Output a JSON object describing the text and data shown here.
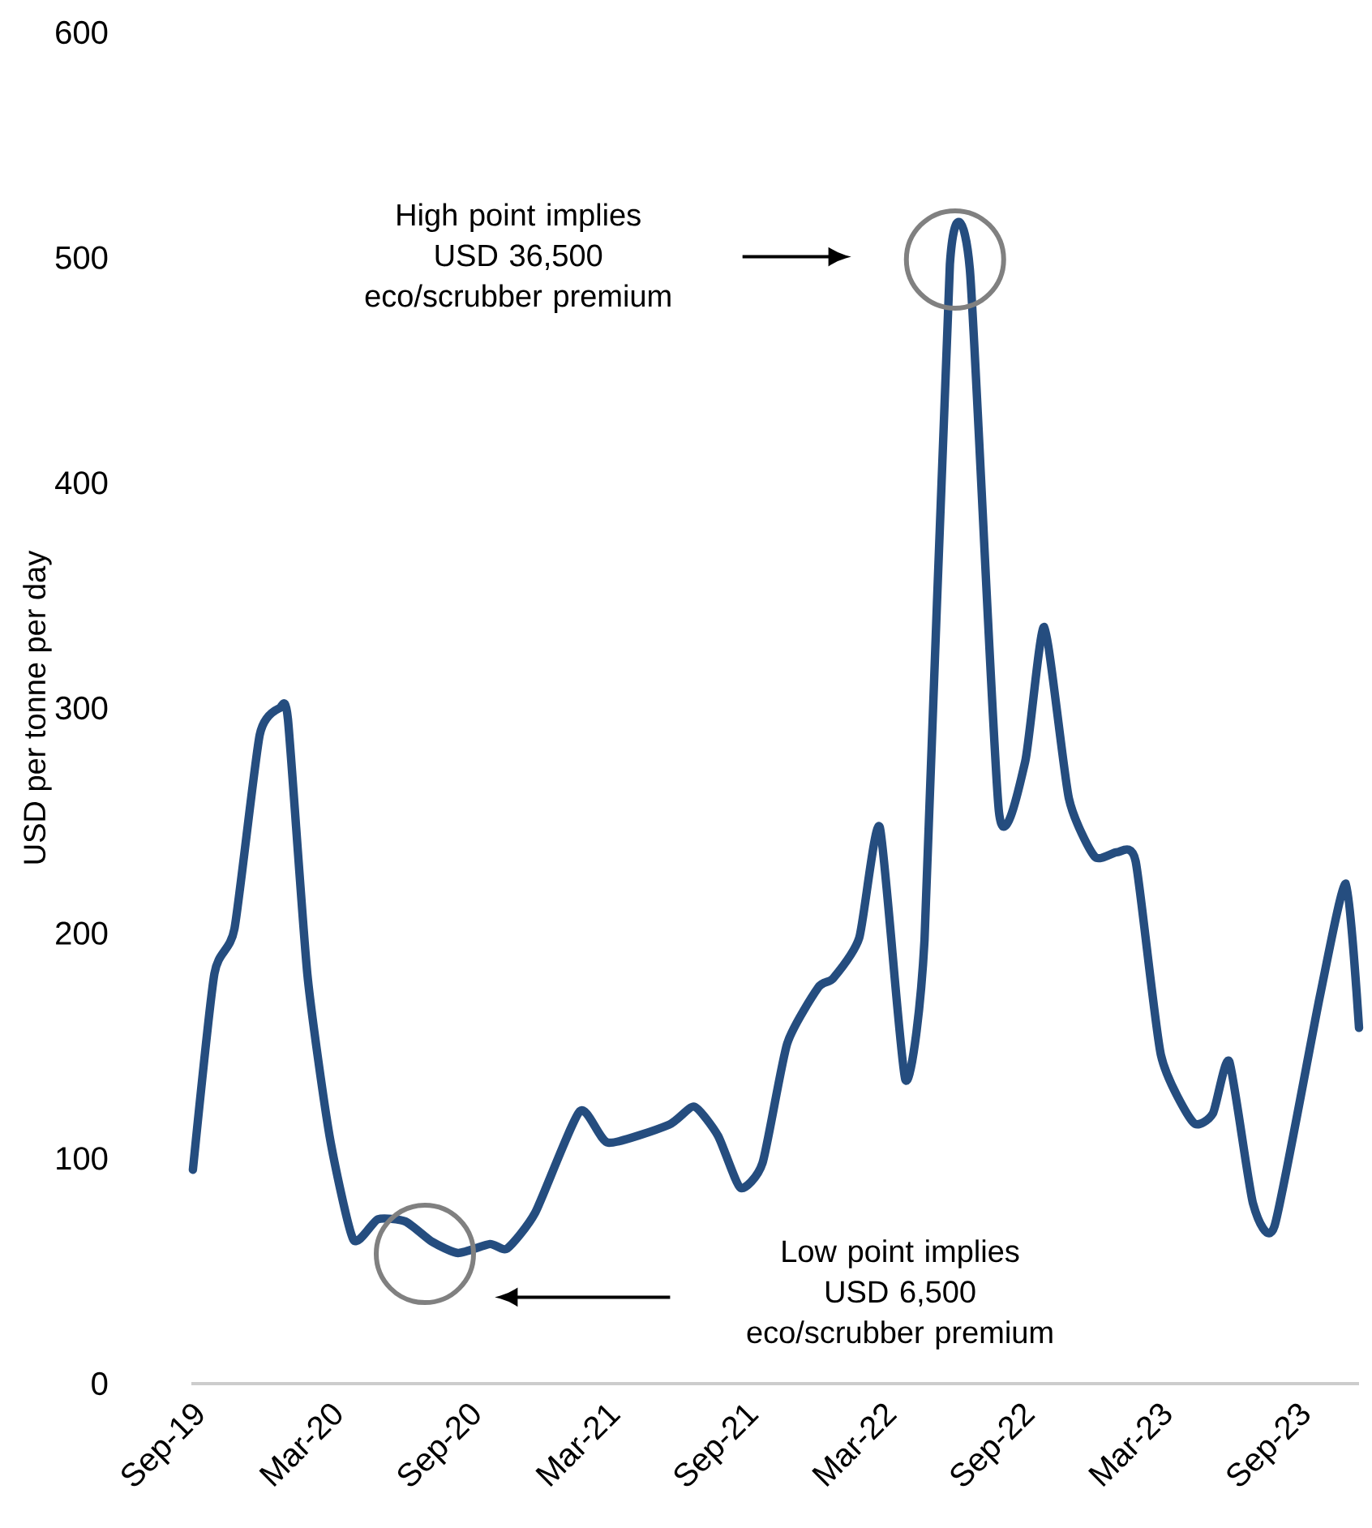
{
  "chart_data": {
    "type": "line",
    "ylabel": "USD per tonne per day",
    "x": [
      "2019-09-03",
      "2019-10-01",
      "2019-10-28",
      "2019-11-30",
      "2019-12-27",
      "2020-01-07",
      "2020-02-02",
      "2020-03-01",
      "2020-04-02",
      "2020-05-04",
      "2020-06-10",
      "2020-07-15",
      "2020-08-19",
      "2020-09-30",
      "2020-10-23",
      "2020-11-29",
      "2021-01-28",
      "2021-03-04",
      "2021-05-24",
      "2021-06-26",
      "2021-07-28",
      "2021-08-27",
      "2021-09-25",
      "2021-10-28",
      "2021-12-08",
      "2021-12-28",
      "2022-02-01",
      "2022-02-26",
      "2022-04-01",
      "2022-04-26",
      "2022-05-30",
      "2022-06-25",
      "2022-08-03",
      "2022-09-07",
      "2022-10-02",
      "2022-11-04",
      "2022-12-08",
      "2023-01-07",
      "2023-02-01",
      "2023-03-04",
      "2023-04-16",
      "2023-05-12",
      "2023-06-03",
      "2023-07-04",
      "2023-08-02",
      "2023-10-01",
      "2023-11-05",
      "2023-11-22"
    ],
    "series": [
      {
        "color": "#254d7f",
        "values": [
          95,
          182,
          202,
          288,
          300,
          295,
          182,
          110,
          64,
          73,
          72,
          63,
          58,
          62,
          60,
          76,
          121,
          107,
          115,
          123,
          110,
          87,
          98,
          151,
          176,
          180,
          198,
          247,
          135,
          197,
          497,
          495,
          254,
          276,
          336,
          260,
          234,
          236,
          232,
          146,
          116,
          120,
          143,
          80,
          70,
          172,
          222,
          158
        ]
      }
    ],
    "ylim": [
      0,
      600
    ],
    "yticks": [
      0,
      100,
      200,
      300,
      400,
      500,
      600
    ],
    "xlim": [
      "2019-09-01",
      "2023-11-22"
    ],
    "xticks": [
      {
        "value": "2019-09",
        "label": "Sep-19"
      },
      {
        "value": "2020-03",
        "label": "Mar-20"
      },
      {
        "value": "2020-09",
        "label": "Sep-20"
      },
      {
        "value": "2021-03",
        "label": "Mar-21"
      },
      {
        "value": "2021-09",
        "label": "Sep-21"
      },
      {
        "value": "2022-03",
        "label": "Mar-22"
      },
      {
        "value": "2022-09",
        "label": "Sep-22"
      },
      {
        "value": "2023-03",
        "label": "Mar-23"
      },
      {
        "value": "2023-09",
        "label": "Sep-23"
      }
    ],
    "marker": "none",
    "line_style": "solid",
    "grid": false,
    "annotations": [
      "High point implies USD 36,500 eco/scrubber premium",
      "Low point implies USD 6,500 eco/scrubber premium"
    ]
  }
}
